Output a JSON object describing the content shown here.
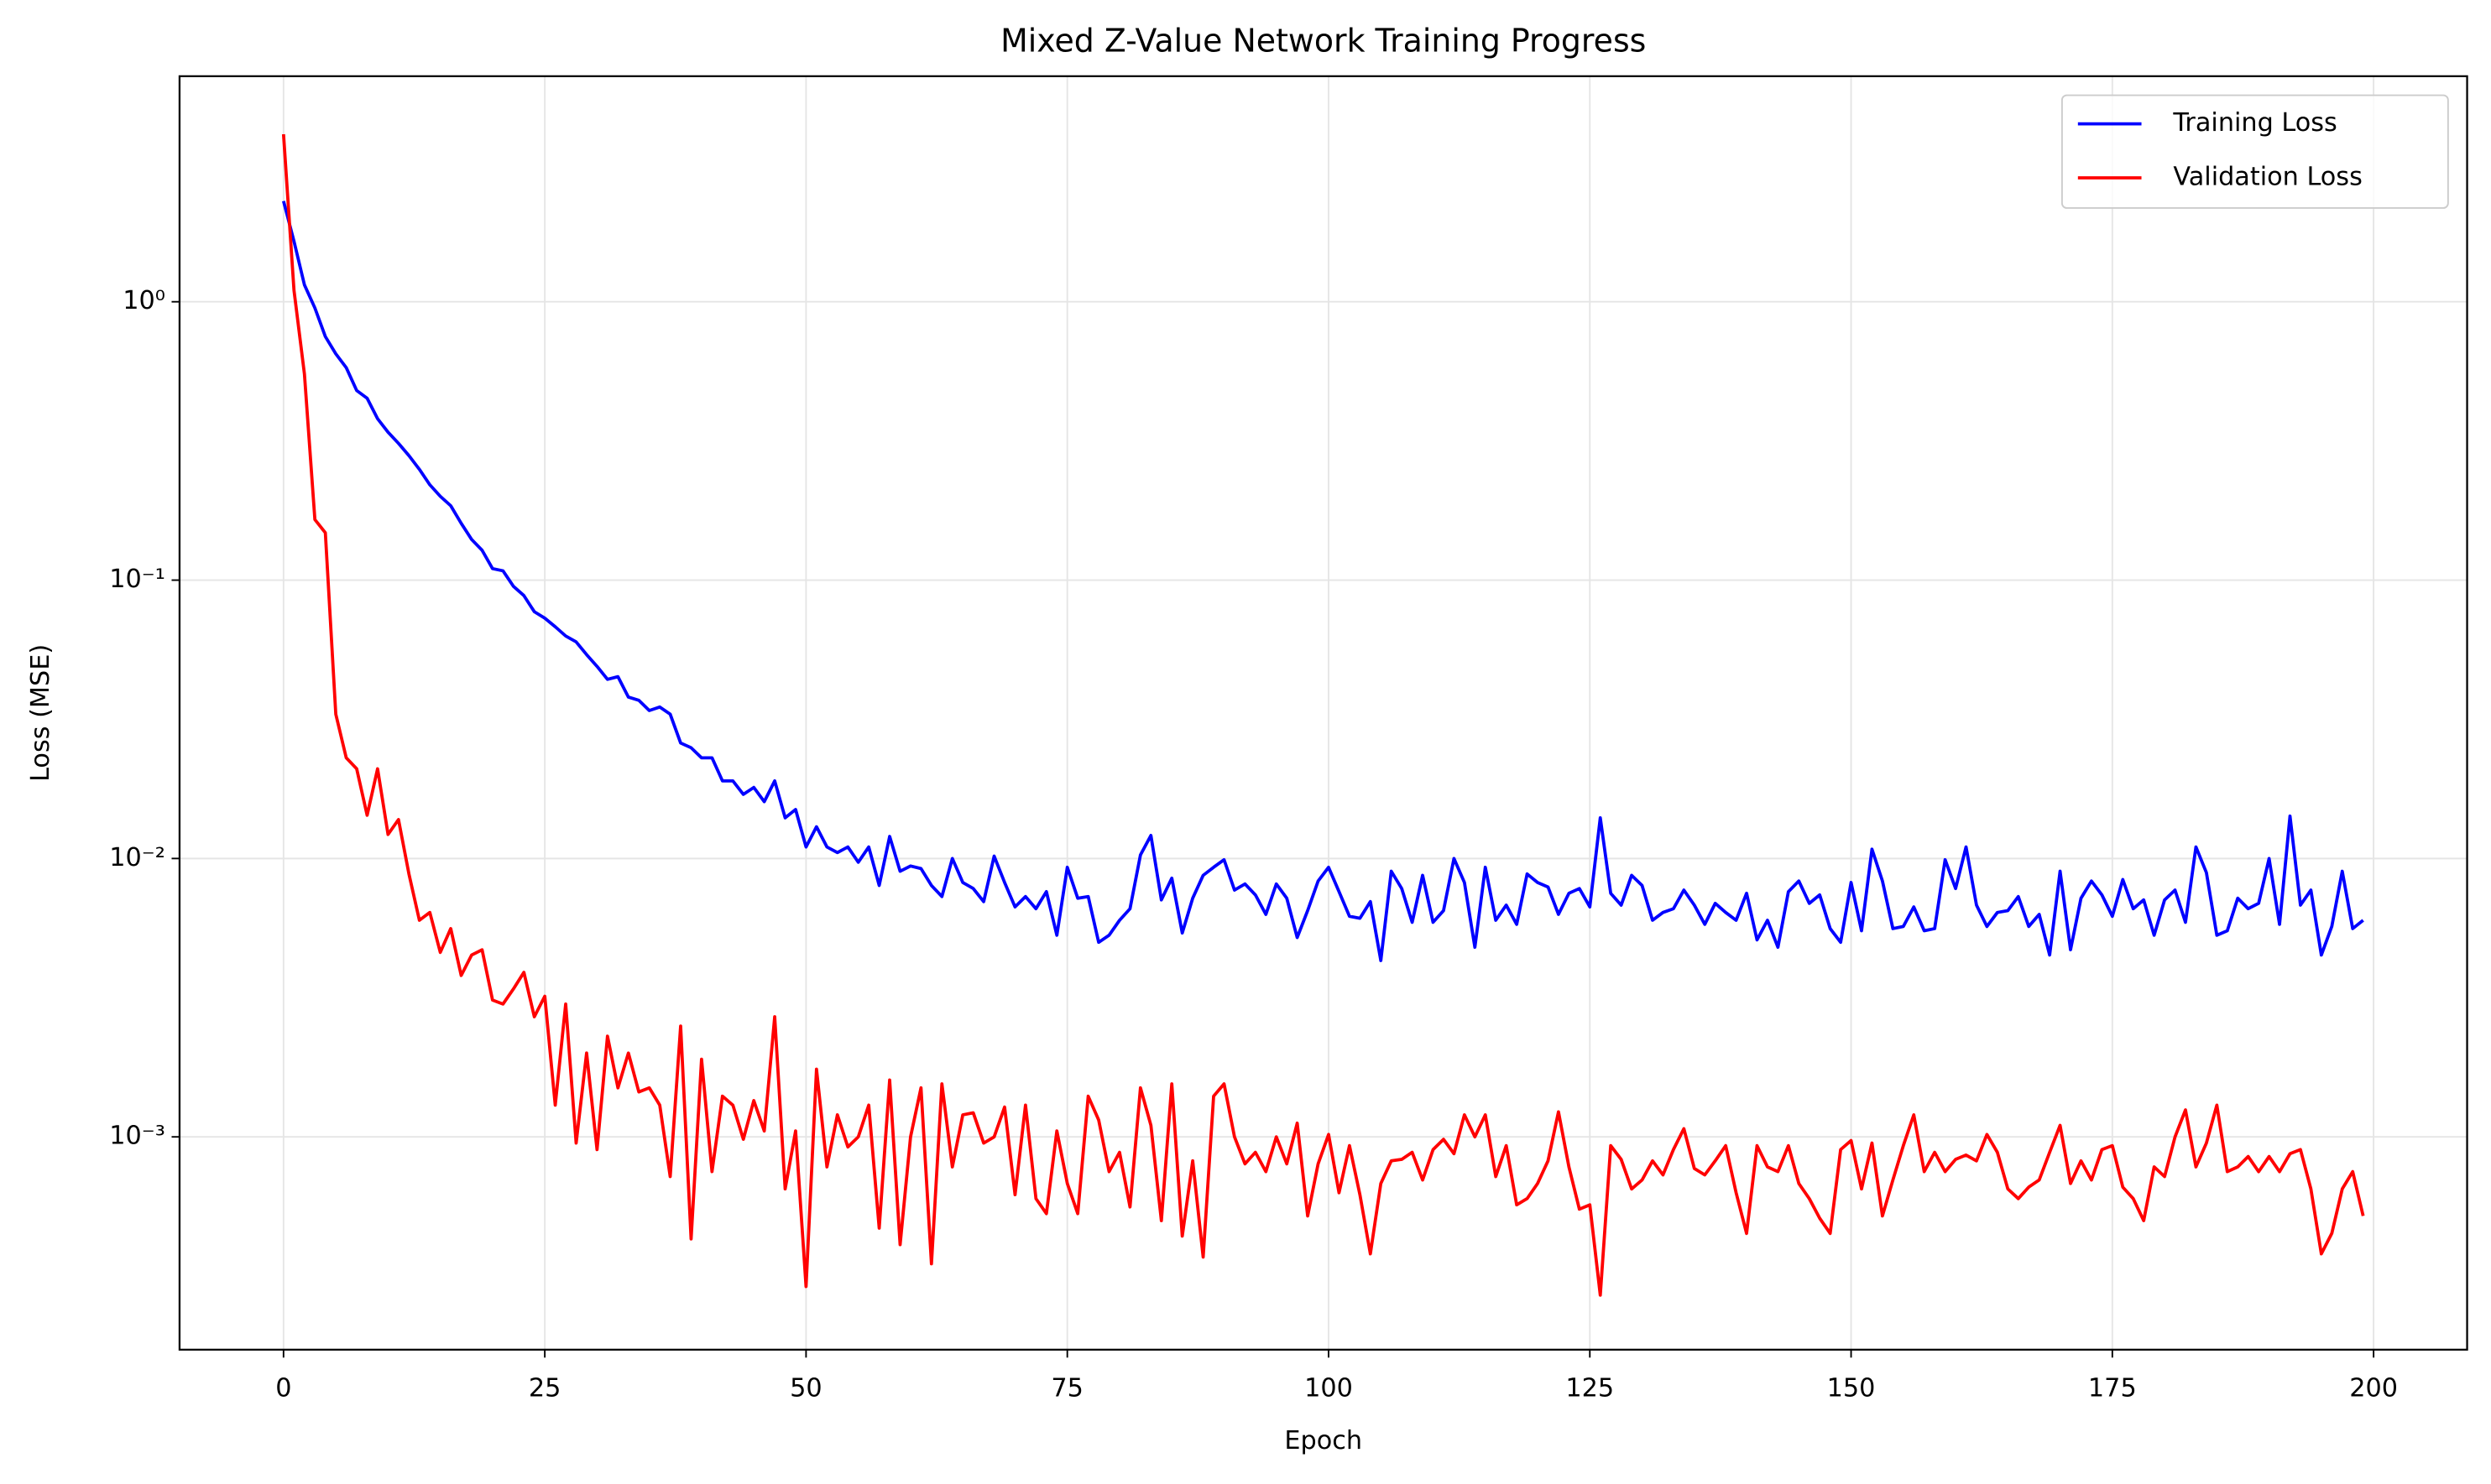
{
  "chart_data": {
    "type": "line",
    "title": "Mixed Z-Value Network Training Progress",
    "x_label": "Epoch",
    "y_label": "Loss (MSE)",
    "x": [
      0,
      1,
      2,
      3,
      4,
      5,
      6,
      7,
      8,
      9,
      10,
      11,
      12,
      13,
      14,
      15,
      16,
      17,
      18,
      19,
      20,
      21,
      22,
      23,
      24,
      25,
      26,
      27,
      28,
      29,
      30,
      31,
      32,
      33,
      34,
      35,
      36,
      37,
      38,
      39,
      40,
      41,
      42,
      43,
      44,
      45,
      46,
      47,
      48,
      49,
      50,
      51,
      52,
      53,
      54,
      55,
      56,
      57,
      58,
      59,
      60,
      61,
      62,
      63,
      64,
      65,
      66,
      67,
      68,
      69,
      70,
      71,
      72,
      73,
      74,
      75,
      76,
      77,
      78,
      79,
      80,
      81,
      82,
      83,
      84,
      85,
      86,
      87,
      88,
      89,
      90,
      91,
      92,
      93,
      94,
      95,
      96,
      97,
      98,
      99,
      100,
      101,
      102,
      103,
      104,
      105,
      106,
      107,
      108,
      109,
      110,
      111,
      112,
      113,
      114,
      115,
      116,
      117,
      118,
      119,
      120,
      121,
      122,
      123,
      124,
      125,
      126,
      127,
      128,
      129,
      130,
      131,
      132,
      133,
      134,
      135,
      136,
      137,
      138,
      139,
      140,
      141,
      142,
      143,
      144,
      145,
      146,
      147,
      148,
      149,
      150,
      151,
      152,
      153,
      154,
      155,
      156,
      157,
      158,
      159,
      160,
      161,
      162,
      163,
      164,
      165,
      166,
      167,
      168,
      169,
      170,
      171,
      172,
      173,
      174,
      175,
      176,
      177,
      178,
      179,
      180,
      181,
      182,
      183,
      184,
      185,
      186,
      187,
      188,
      189,
      190,
      191,
      192,
      193,
      194,
      195,
      196,
      197,
      198,
      199
    ],
    "series": [
      {
        "name": "Training Loss",
        "color": "#0000ff",
        "values": [
          2.3,
          1.65,
          1.15,
          0.95,
          0.75,
          0.65,
          0.58,
          0.48,
          0.45,
          0.38,
          0.34,
          0.31,
          0.28,
          0.25,
          0.22,
          0.2,
          0.185,
          0.16,
          0.14,
          0.128,
          0.11,
          0.108,
          0.095,
          0.088,
          0.077,
          0.073,
          0.068,
          0.063,
          0.06,
          0.054,
          0.049,
          0.044,
          0.045,
          0.038,
          0.037,
          0.034,
          0.035,
          0.033,
          0.026,
          0.025,
          0.023,
          0.023,
          0.019,
          0.019,
          0.017,
          0.018,
          0.016,
          0.019,
          0.014,
          0.015,
          0.011,
          0.013,
          0.011,
          0.0105,
          0.011,
          0.0097,
          0.011,
          0.008,
          0.012,
          0.009,
          0.0094,
          0.0092,
          0.008,
          0.0073,
          0.01,
          0.0082,
          0.0078,
          0.007,
          0.0102,
          0.0082,
          0.0067,
          0.0073,
          0.0066,
          0.0076,
          0.0053,
          0.0093,
          0.0072,
          0.0073,
          0.005,
          0.0053,
          0.006,
          0.0066,
          0.0103,
          0.0121,
          0.0071,
          0.0085,
          0.0054,
          0.0072,
          0.0087,
          0.0093,
          0.0099,
          0.0077,
          0.0081,
          0.0074,
          0.0063,
          0.0081,
          0.0072,
          0.0052,
          0.0065,
          0.0083,
          0.0093,
          0.0076,
          0.0062,
          0.0061,
          0.007,
          0.0043,
          0.009,
          0.0078,
          0.0059,
          0.0087,
          0.0059,
          0.0065,
          0.01,
          0.0082,
          0.0048,
          0.0093,
          0.006,
          0.0068,
          0.0058,
          0.0088,
          0.0082,
          0.0079,
          0.0063,
          0.0075,
          0.0078,
          0.0067,
          0.014,
          0.0075,
          0.0068,
          0.0087,
          0.008,
          0.006,
          0.0064,
          0.0066,
          0.0077,
          0.0068,
          0.0058,
          0.0069,
          0.0064,
          0.006,
          0.0075,
          0.0051,
          0.006,
          0.0048,
          0.0076,
          0.0083,
          0.0069,
          0.0074,
          0.0056,
          0.005,
          0.0082,
          0.0055,
          0.0108,
          0.0083,
          0.0056,
          0.0057,
          0.0067,
          0.0055,
          0.0056,
          0.0099,
          0.0078,
          0.011,
          0.0068,
          0.0057,
          0.0064,
          0.0065,
          0.0073,
          0.0057,
          0.0063,
          0.0045,
          0.009,
          0.0047,
          0.0072,
          0.0083,
          0.0074,
          0.0062,
          0.0084,
          0.0066,
          0.0071,
          0.0053,
          0.0071,
          0.0077,
          0.0059,
          0.011,
          0.0089,
          0.0053,
          0.0055,
          0.0072,
          0.0066,
          0.0069,
          0.01,
          0.0058,
          0.0142,
          0.0068,
          0.0077,
          0.0045,
          0.0057,
          0.009,
          0.0056,
          0.006
        ]
      },
      {
        "name": "Validation Loss",
        "color": "#ff0000",
        "values": [
          4.0,
          1.1,
          0.55,
          0.165,
          0.148,
          0.033,
          0.023,
          0.021,
          0.0143,
          0.021,
          0.0122,
          0.0138,
          0.0088,
          0.006,
          0.0064,
          0.0046,
          0.0056,
          0.0038,
          0.0045,
          0.0047,
          0.0031,
          0.003,
          0.0034,
          0.0039,
          0.0027,
          0.0032,
          0.0013,
          0.003,
          0.00095,
          0.002,
          0.0009,
          0.0023,
          0.0015,
          0.002,
          0.00145,
          0.0015,
          0.0013,
          0.00072,
          0.0025,
          0.00043,
          0.0019,
          0.00075,
          0.0014,
          0.0013,
          0.00098,
          0.00135,
          0.00105,
          0.0027,
          0.00065,
          0.00105,
          0.00029,
          0.00175,
          0.00078,
          0.0012,
          0.00092,
          0.001,
          0.0013,
          0.00047,
          0.0016,
          0.00041,
          0.001,
          0.0015,
          0.00035,
          0.00155,
          0.00078,
          0.0012,
          0.00122,
          0.00095,
          0.001,
          0.00128,
          0.00062,
          0.0013,
          0.0006,
          0.00053,
          0.00105,
          0.00068,
          0.00053,
          0.0014,
          0.00115,
          0.00075,
          0.00088,
          0.00056,
          0.0015,
          0.0011,
          0.0005,
          0.00155,
          0.00044,
          0.00082,
          0.00037,
          0.0014,
          0.00155,
          0.001,
          0.0008,
          0.00088,
          0.00075,
          0.001,
          0.0008,
          0.00112,
          0.00052,
          0.0008,
          0.00102,
          0.00063,
          0.00093,
          0.00062,
          0.00038,
          0.00068,
          0.00082,
          0.00083,
          0.00088,
          0.0007,
          0.0009,
          0.00098,
          0.00087,
          0.0012,
          0.001,
          0.0012,
          0.00072,
          0.00093,
          0.00057,
          0.0006,
          0.00068,
          0.00082,
          0.00123,
          0.00078,
          0.00055,
          0.00057,
          0.00027,
          0.00093,
          0.00083,
          0.00065,
          0.0007,
          0.00082,
          0.00073,
          0.0009,
          0.00107,
          0.00077,
          0.00073,
          0.00082,
          0.00093,
          0.00063,
          0.00045,
          0.00093,
          0.00078,
          0.00075,
          0.00093,
          0.00068,
          0.0006,
          0.00051,
          0.00045,
          0.0009,
          0.00097,
          0.00065,
          0.00095,
          0.00052,
          0.0007,
          0.00093,
          0.0012,
          0.00075,
          0.00088,
          0.00075,
          0.00083,
          0.00086,
          0.00082,
          0.00102,
          0.00088,
          0.00065,
          0.0006,
          0.00066,
          0.0007,
          0.00088,
          0.0011,
          0.00068,
          0.00082,
          0.0007,
          0.0009,
          0.00093,
          0.00066,
          0.0006,
          0.0005,
          0.00078,
          0.00072,
          0.001,
          0.00125,
          0.00078,
          0.00095,
          0.0013,
          0.00075,
          0.00078,
          0.00085,
          0.00075,
          0.00085,
          0.00075,
          0.00087,
          0.0009,
          0.00065,
          0.00038,
          0.00045,
          0.00065,
          0.00075,
          0.00052
        ]
      }
    ],
    "xlim": [
      -9.95,
      208.95
    ],
    "xticks": [
      0,
      25,
      50,
      75,
      100,
      125,
      150,
      175,
      200
    ],
    "ylim": [
      0.000172,
      6.46
    ],
    "y_scale": "log",
    "yticks": [
      {
        "value": 0.001,
        "label": "10⁻³"
      },
      {
        "value": 0.01,
        "label": "10⁻²"
      },
      {
        "value": 0.1,
        "label": "10⁻¹"
      },
      {
        "value": 1,
        "label": "10⁰"
      }
    ],
    "grid": true,
    "legend": "upper right"
  }
}
